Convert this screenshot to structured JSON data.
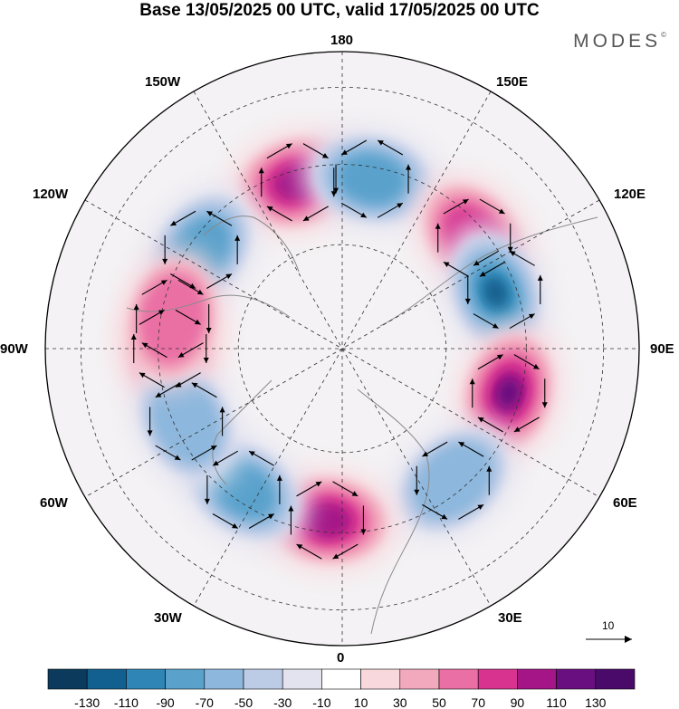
{
  "title": "Base 13/05/2025 00 UTC, valid 17/05/2025 00 UTC",
  "brand": "MODES",
  "brand_mark": "©",
  "longitude_labels": {
    "lon_180": "180",
    "lon_150e": "150E",
    "lon_120e": "120E",
    "lon_90e": "90E",
    "lon_60e": "60E",
    "lon_30e": "30E",
    "lon_0": "0",
    "lon_30w": "30W",
    "lon_60w": "60W",
    "lon_90w": "90W",
    "lon_120w": "120W",
    "lon_150w": "150W"
  },
  "reference_vector": {
    "label": "10"
  },
  "colorbar": {
    "tick_labels": [
      "-130",
      "-110",
      "-90",
      "-70",
      "-50",
      "-30",
      "-10",
      "10",
      "30",
      "50",
      "70",
      "90",
      "110",
      "130"
    ],
    "colors": [
      "#0b3a5c",
      "#12608f",
      "#2f86b6",
      "#5aa2cc",
      "#8db7dd",
      "#bccbe6",
      "#e3e3f0",
      "#ffffff",
      "#f8d7dd",
      "#f2a9bd",
      "#ea6fa4",
      "#d7338f",
      "#a51587",
      "#6a0f80",
      "#4a0a6a"
    ]
  },
  "map_anomalies": [
    {
      "sign": "positive",
      "center_lon": "165W",
      "level": 4
    },
    {
      "sign": "negative",
      "center_lon": "170E",
      "level": 3
    },
    {
      "sign": "positive",
      "center_lon": "130E",
      "level": 3
    },
    {
      "sign": "negative",
      "center_lon": "110E",
      "level": 5
    },
    {
      "sign": "positive",
      "center_lon": "75E",
      "level": 5
    },
    {
      "sign": "negative",
      "center_lon": "40E",
      "level": 2
    },
    {
      "sign": "positive",
      "center_lon": "5W",
      "level": 4
    },
    {
      "sign": "negative",
      "center_lon": "35W",
      "level": 3
    },
    {
      "sign": "positive",
      "center_lon": "90W",
      "level": 2
    },
    {
      "sign": "negative",
      "center_lon": "125W",
      "level": 3
    },
    {
      "sign": "negative",
      "center_lon": "65W",
      "level": 2
    },
    {
      "sign": "positive",
      "center_lon": "100W",
      "level": 2
    }
  ]
}
